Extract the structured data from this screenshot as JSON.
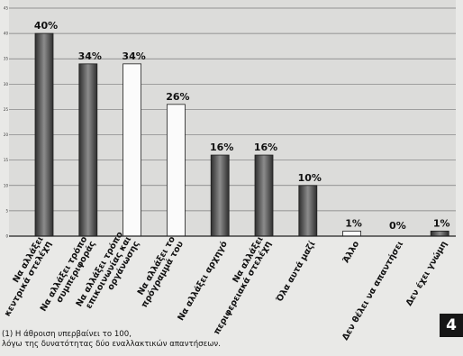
{
  "chart_data": {
    "type": "bar",
    "title": "",
    "xlabel": "",
    "ylabel": "",
    "ylim": [
      0,
      45
    ],
    "yticks": [
      0,
      5,
      10,
      15,
      20,
      25,
      30,
      35,
      40,
      45
    ],
    "grid": true,
    "categories": [
      [
        "Να αλλάξει",
        "κεντρικά στελέχη"
      ],
      [
        "Να αλλάξει τρόπο",
        "συμπεριφοράς"
      ],
      [
        "Να αλλάξει τρόπο",
        "επικοινωνίας και",
        "οργάνωσης"
      ],
      [
        "Να αλλάξει το",
        "πρόγραμμά του"
      ],
      [
        "Να αλλάξει αρχηγό"
      ],
      [
        "Να αλλάξει",
        "περιφερειακά στελέχη"
      ],
      [
        "Όλα αυτά μαζί"
      ],
      [
        "Άλλο"
      ],
      [
        "Δεν θέλει να απαντήσει"
      ],
      [
        "Δεν έχει γνώμη"
      ]
    ],
    "values": [
      40,
      34,
      34,
      26,
      16,
      16,
      10,
      1,
      0,
      1
    ],
    "value_labels": [
      "40%",
      "34%",
      "34%",
      "26%",
      "16%",
      "16%",
      "10%",
      "1%",
      "0%",
      "1%"
    ],
    "bar_styles": [
      "dark",
      "dark",
      "light",
      "light",
      "dark",
      "dark",
      "dark",
      "light",
      "light",
      "dark"
    ]
  },
  "colors": {
    "dark_bar_edge": "#2e2e2e",
    "dark_bar_mid": "#8c8c8c",
    "light_bar": "#fbfbfb",
    "plot_background": "#dcdcda",
    "gridline": "#7a7a7a"
  },
  "footnote": {
    "line1": "(1) Η άθροιση υπερβαίνει το 100,",
    "line2": "λόγω της δυνατότητας δύο εναλλακτικών απαντήσεων."
  },
  "page_number": "4"
}
